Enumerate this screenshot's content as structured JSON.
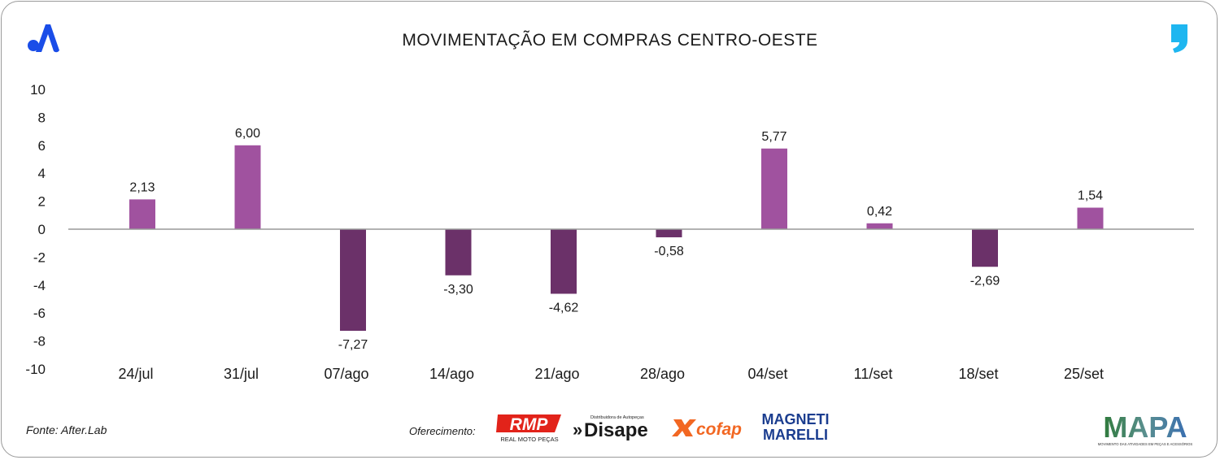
{
  "header": {
    "title": "MOVIMENTAÇÃO EM COMPRAS CENTRO-OESTE"
  },
  "footer": {
    "source": "Fonte: After.Lab",
    "sponsor_label": "Oferecimento:",
    "sponsors": [
      "RMP",
      "REAL MOTO PEÇAS",
      "Disape",
      "Distribuidora de Autopeças",
      "cofap",
      "MAGNETI",
      "MARELLI",
      "MAPA",
      "MOVIMENTO DAS ATIVIDADES EM PEÇAS E ACESSÓRIOS"
    ]
  },
  "colors": {
    "positive_bar": "#a0529f",
    "negative_bar": "#6b3169",
    "axis_line": "#999999",
    "brand_blue": "#1a4de8",
    "quote_blue": "#1eb6f0"
  },
  "chart_data": {
    "type": "bar",
    "title": "MOVIMENTAÇÃO EM COMPRAS CENTRO-OESTE",
    "categories": [
      "24/jul",
      "31/jul",
      "07/ago",
      "14/ago",
      "21/ago",
      "28/ago",
      "04/set",
      "11/set",
      "18/set",
      "25/set"
    ],
    "values": [
      2.13,
      6.0,
      -7.27,
      -3.3,
      -4.62,
      -0.58,
      5.77,
      0.42,
      -2.69,
      1.54
    ],
    "data_labels": [
      "2,13",
      "6,00",
      "-7,27",
      "-3,30",
      "-4,62",
      "-0,58",
      "5,77",
      "0,42",
      "-2,69",
      "1,54"
    ],
    "yticks": [
      10,
      8,
      6,
      4,
      2,
      0,
      -2,
      -4,
      -6,
      -8,
      -10
    ],
    "ylim": [
      -10,
      10
    ],
    "xlabel": "",
    "ylabel": "",
    "grid": false,
    "legend": "none"
  }
}
